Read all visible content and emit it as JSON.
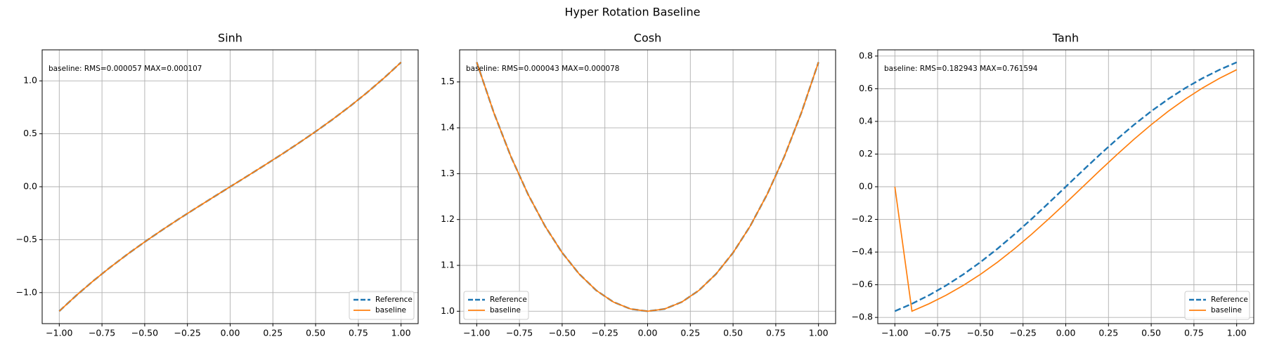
{
  "title": "Hyper Rotation Baseline",
  "chart_data": [
    {
      "type": "line",
      "title": "Sinh",
      "annotation": "baseline: RMS=0.000057 MAX=0.000107",
      "x": [
        -1.0,
        -0.9,
        -0.8,
        -0.7,
        -0.6,
        -0.5,
        -0.4,
        -0.3,
        -0.2,
        -0.1,
        0.0,
        0.1,
        0.2,
        0.3,
        0.4,
        0.5,
        0.6,
        0.7,
        0.8,
        0.9,
        1.0
      ],
      "series": [
        {
          "name": "Reference",
          "color": "#1f77b4",
          "linestyle": "dashed",
          "values": [
            -1.1752,
            -1.0265,
            -0.8881,
            -0.7586,
            -0.6367,
            -0.5211,
            -0.4108,
            -0.3045,
            -0.2013,
            -0.1002,
            0.0,
            0.1002,
            0.2013,
            0.3045,
            0.4108,
            0.5211,
            0.6367,
            0.7586,
            0.8881,
            1.0265,
            1.1752
          ]
        },
        {
          "name": "baseline",
          "color": "#ff7f0e",
          "linestyle": "solid",
          "values": [
            -1.1752,
            -1.0265,
            -0.8881,
            -0.7586,
            -0.6367,
            -0.5211,
            -0.4108,
            -0.3045,
            -0.2013,
            -0.1002,
            0.0,
            0.1002,
            0.2013,
            0.3045,
            0.4108,
            0.5211,
            0.6367,
            0.7586,
            0.8881,
            1.0265,
            1.1752
          ]
        }
      ],
      "xlim": [
        -1.1,
        1.1
      ],
      "ylim": [
        -1.293,
        1.293
      ],
      "xticks": [
        {
          "value": -1.0,
          "label": "−1.00"
        },
        {
          "value": -0.75,
          "label": "−0.75"
        },
        {
          "value": -0.5,
          "label": "−0.50"
        },
        {
          "value": -0.25,
          "label": "−0.25"
        },
        {
          "value": 0.0,
          "label": "0.00"
        },
        {
          "value": 0.25,
          "label": "0.25"
        },
        {
          "value": 0.5,
          "label": "0.50"
        },
        {
          "value": 0.75,
          "label": "0.75"
        },
        {
          "value": 1.0,
          "label": "1.00"
        }
      ],
      "yticks": [
        {
          "value": -1.0,
          "label": "−1.0"
        },
        {
          "value": -0.5,
          "label": "−0.5"
        },
        {
          "value": 0.0,
          "label": "0.0"
        },
        {
          "value": 0.5,
          "label": "0.5"
        },
        {
          "value": 1.0,
          "label": "1.0"
        }
      ],
      "grid": true,
      "legend": "lower right"
    },
    {
      "type": "line",
      "title": "Cosh",
      "annotation": "baseline: RMS=0.000043 MAX=0.000078",
      "x": [
        -1.0,
        -0.9,
        -0.8,
        -0.7,
        -0.6,
        -0.5,
        -0.4,
        -0.3,
        -0.2,
        -0.1,
        0.0,
        0.1,
        0.2,
        0.3,
        0.4,
        0.5,
        0.6,
        0.7,
        0.8,
        0.9,
        1.0
      ],
      "series": [
        {
          "name": "Reference",
          "color": "#1f77b4",
          "linestyle": "dashed",
          "values": [
            1.5431,
            1.4331,
            1.3374,
            1.2552,
            1.1855,
            1.1276,
            1.0811,
            1.0453,
            1.0201,
            1.005,
            1.0,
            1.005,
            1.0201,
            1.0453,
            1.0811,
            1.1276,
            1.1855,
            1.2552,
            1.3374,
            1.4331,
            1.5431
          ]
        },
        {
          "name": "baseline",
          "color": "#ff7f0e",
          "linestyle": "solid",
          "values": [
            1.5431,
            1.4331,
            1.3374,
            1.2552,
            1.1855,
            1.1276,
            1.0811,
            1.0453,
            1.0201,
            1.005,
            1.0,
            1.005,
            1.0201,
            1.0453,
            1.0811,
            1.1276,
            1.1855,
            1.2552,
            1.3374,
            1.4331,
            1.5431
          ]
        }
      ],
      "xlim": [
        -1.1,
        1.1
      ],
      "ylim": [
        0.973,
        1.57
      ],
      "xticks": [
        {
          "value": -1.0,
          "label": "−1.00"
        },
        {
          "value": -0.75,
          "label": "−0.75"
        },
        {
          "value": -0.5,
          "label": "−0.50"
        },
        {
          "value": -0.25,
          "label": "−0.25"
        },
        {
          "value": 0.0,
          "label": "0.00"
        },
        {
          "value": 0.25,
          "label": "0.25"
        },
        {
          "value": 0.5,
          "label": "0.50"
        },
        {
          "value": 0.75,
          "label": "0.75"
        },
        {
          "value": 1.0,
          "label": "1.00"
        }
      ],
      "yticks": [
        {
          "value": 1.0,
          "label": "1.0"
        },
        {
          "value": 1.1,
          "label": "1.1"
        },
        {
          "value": 1.2,
          "label": "1.2"
        },
        {
          "value": 1.3,
          "label": "1.3"
        },
        {
          "value": 1.4,
          "label": "1.4"
        },
        {
          "value": 1.5,
          "label": "1.5"
        }
      ],
      "grid": true,
      "legend": "lower left"
    },
    {
      "type": "line",
      "title": "Tanh",
      "annotation": "baseline: RMS=0.182943 MAX=0.761594",
      "x": [
        -1.0,
        -0.9,
        -0.8,
        -0.7,
        -0.6,
        -0.5,
        -0.4,
        -0.3,
        -0.2,
        -0.1,
        0.0,
        0.1,
        0.2,
        0.3,
        0.4,
        0.5,
        0.6,
        0.7,
        0.8,
        0.9,
        1.0
      ],
      "series": [
        {
          "name": "Reference",
          "color": "#1f77b4",
          "linestyle": "dashed",
          "values": [
            -0.7616,
            -0.7163,
            -0.664,
            -0.6044,
            -0.537,
            -0.4621,
            -0.3799,
            -0.2913,
            -0.1974,
            -0.0997,
            0.0,
            0.0997,
            0.1974,
            0.2913,
            0.3799,
            0.4621,
            0.537,
            0.6044,
            0.664,
            0.7163,
            0.7616
          ]
        },
        {
          "name": "baseline",
          "color": "#ff7f0e",
          "linestyle": "solid",
          "values": [
            0.0,
            -0.7616,
            -0.7163,
            -0.664,
            -0.6044,
            -0.537,
            -0.4621,
            -0.3799,
            -0.2913,
            -0.1974,
            -0.0997,
            0.0,
            0.0997,
            0.1974,
            0.2913,
            0.3799,
            0.4621,
            0.537,
            0.6044,
            0.664,
            0.7163
          ]
        }
      ],
      "xlim": [
        -1.1,
        1.1
      ],
      "ylim": [
        -0.838,
        0.838
      ],
      "xticks": [
        {
          "value": -1.0,
          "label": "−1.00"
        },
        {
          "value": -0.75,
          "label": "−0.75"
        },
        {
          "value": -0.5,
          "label": "−0.50"
        },
        {
          "value": -0.25,
          "label": "−0.25"
        },
        {
          "value": 0.0,
          "label": "0.00"
        },
        {
          "value": 0.25,
          "label": "0.25"
        },
        {
          "value": 0.5,
          "label": "0.50"
        },
        {
          "value": 0.75,
          "label": "0.75"
        },
        {
          "value": 1.0,
          "label": "1.00"
        }
      ],
      "yticks": [
        {
          "value": -0.8,
          "label": "−0.8"
        },
        {
          "value": -0.6,
          "label": "−0.6"
        },
        {
          "value": -0.4,
          "label": "−0.4"
        },
        {
          "value": -0.2,
          "label": "−0.2"
        },
        {
          "value": 0.0,
          "label": "0.0"
        },
        {
          "value": 0.2,
          "label": "0.2"
        },
        {
          "value": 0.4,
          "label": "0.4"
        },
        {
          "value": 0.6,
          "label": "0.6"
        },
        {
          "value": 0.8,
          "label": "0.8"
        }
      ],
      "grid": true,
      "legend": "lower right"
    }
  ]
}
